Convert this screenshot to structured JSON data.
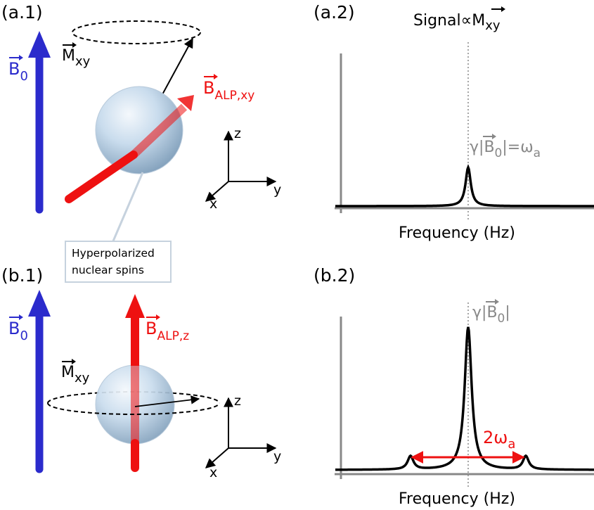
{
  "panels": {
    "a1": {
      "tag": "(a.1)",
      "b0": "B",
      "b0_sub": "0",
      "mxy": "M",
      "mxy_sub": "xy",
      "balp": "B",
      "balp_sub": "ALP,xy"
    },
    "a2": {
      "tag": "(a.2)",
      "title_prefix": "Signal∝",
      "title_m": "M",
      "title_sub": "xy",
      "peak_label_prefix": "γ|",
      "peak_label_b": "B",
      "peak_label_sub": "0",
      "peak_label_mid": "|=ω",
      "peak_label_sub2": "a",
      "xlabel": "Frequency (Hz)"
    },
    "b1": {
      "tag": "(b.1)",
      "b0": "B",
      "b0_sub": "0",
      "mxy": "M",
      "mxy_sub": "xy",
      "balp": "B",
      "balp_sub": "ALP,z"
    },
    "b2": {
      "tag": "(b.2)",
      "peak_label_prefix": "γ|",
      "peak_label_b": "B",
      "peak_label_sub": "0",
      "peak_label_end": "|",
      "split_label": "2ω",
      "split_sub": "a",
      "xlabel": "Frequency (Hz)"
    }
  },
  "axes": {
    "x": "x",
    "y": "y",
    "z": "z"
  },
  "callout": {
    "line1": "Hyperpolarized",
    "line2": "nuclear spins"
  },
  "colors": {
    "b0": "#2b2bcc",
    "alp": "#ee1111",
    "gray": "#888888",
    "black": "#000000"
  }
}
